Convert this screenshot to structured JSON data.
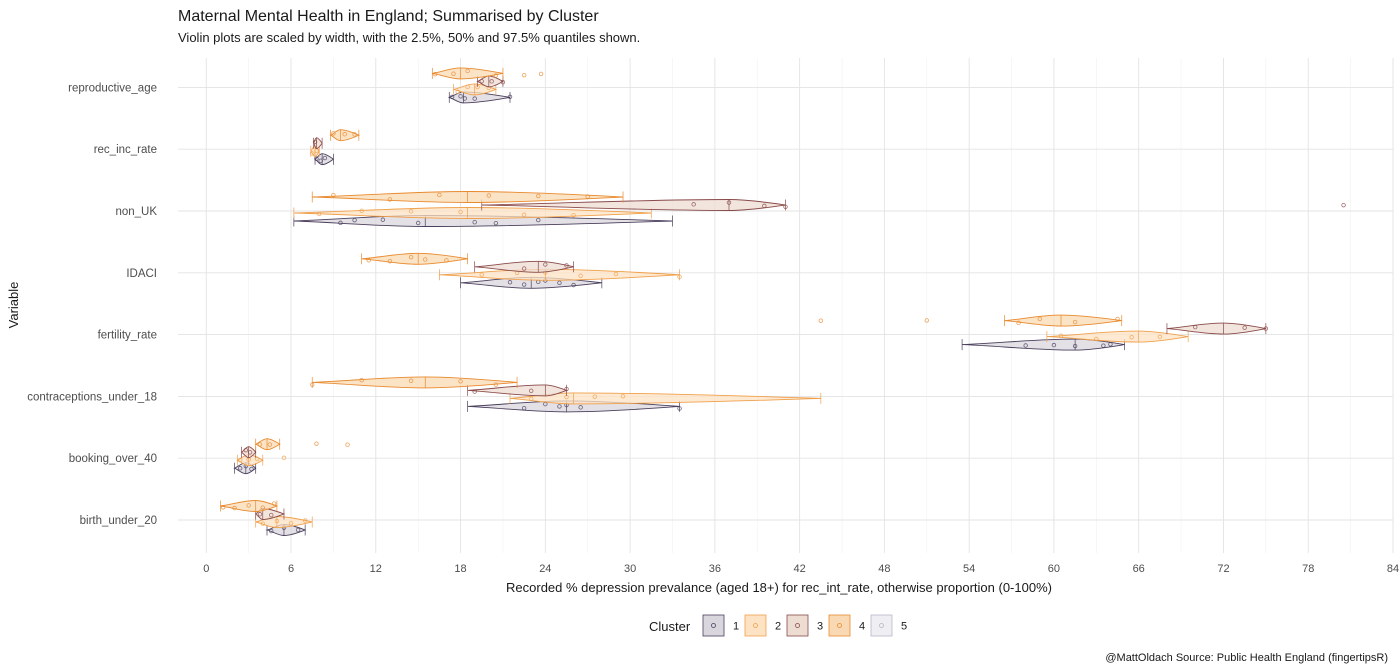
{
  "chart_data": {
    "type": "violin",
    "title": "Maternal Mental Health in England; Summarised by Cluster",
    "subtitle": "Violin plots are scaled by width, with the 2.5%, 50% and 97.5% quantiles shown.",
    "xlabel": "Recorded % depression prevalance (aged 18+) for rec_int_rate, otherwise proportion (0-100%)",
    "ylabel": "Variable",
    "caption": "@MattOldach Source: Public Health England (fingertipsR)",
    "xlim": [
      -2,
      84
    ],
    "x_ticks": [
      0,
      6,
      12,
      18,
      24,
      30,
      36,
      42,
      48,
      54,
      60,
      66,
      72,
      78,
      84
    ],
    "x_tick_labels": [
      "0",
      "6",
      "12",
      "18",
      "24",
      "30",
      "36",
      "42",
      "48",
      "54",
      "60",
      "66",
      "72",
      "78",
      "84"
    ],
    "grid": true,
    "categories": [
      "birth_under_20",
      "booking_over_40",
      "contraceptions_under_18",
      "fertility_rate",
      "IDACI",
      "non_UK",
      "rec_inc_rate",
      "reproductive_age"
    ],
    "legend": {
      "title": "Cluster",
      "position": "bottom",
      "items": [
        {
          "label": "1",
          "color": "#4a3f5c",
          "fill": "#d9d6de"
        },
        {
          "label": "2",
          "color": "#f0a04b",
          "fill": "#fde3c4"
        },
        {
          "label": "3",
          "color": "#8a4a4a",
          "fill": "#ecdcd2"
        },
        {
          "label": "4",
          "color": "#e88a2e",
          "fill": "#f9d9b3"
        },
        {
          "label": "5",
          "color": "#b8b8c8",
          "fill": "#eeeef3"
        }
      ]
    },
    "series": [
      {
        "name": "1",
        "violins": [
          {
            "category": "reproductive_age",
            "q": [
              17.2,
              18.2,
              21.5
            ],
            "points": [
              17.4,
              18.0,
              18.3,
              19.0,
              21.5
            ]
          },
          {
            "category": "rec_inc_rate",
            "q": [
              7.7,
              8.2,
              9.0
            ],
            "points": [
              7.8,
              8.1,
              8.4
            ]
          },
          {
            "category": "non_UK",
            "q": [
              6.2,
              15.5,
              33.0
            ],
            "points": [
              9.5,
              10.5,
              12.5,
              15.0,
              19.0,
              20.5,
              23.5
            ]
          },
          {
            "category": "IDACI",
            "q": [
              18.0,
              23.0,
              28.0
            ],
            "points": [
              21.5,
              22.5,
              23.5,
              24.0,
              25.0,
              26.0
            ]
          },
          {
            "category": "fertility_rate",
            "q": [
              53.5,
              61.5,
              65.0
            ],
            "points": [
              58.0,
              60.0,
              61.5,
              63.5,
              64.0
            ]
          },
          {
            "category": "contraceptions_under_18",
            "q": [
              18.5,
              25.5,
              33.5
            ],
            "points": [
              22.5,
              24.0,
              25.0,
              25.5,
              26.5,
              33.5
            ]
          },
          {
            "category": "booking_over_40",
            "q": [
              2.0,
              2.8,
              3.5
            ],
            "points": [
              2.4,
              2.8,
              3.2
            ]
          },
          {
            "category": "birth_under_20",
            "q": [
              4.3,
              5.5,
              7.0
            ],
            "points": [
              4.6,
              5.5,
              6.5
            ]
          }
        ]
      },
      {
        "name": "2",
        "violins": [
          {
            "category": "reproductive_age",
            "q": [
              17.5,
              19.0,
              20.5
            ],
            "points": [
              17.8,
              18.5,
              19.2,
              20.0
            ]
          },
          {
            "category": "rec_inc_rate",
            "q": [
              7.4,
              7.7,
              8.0
            ],
            "points": [
              7.5,
              7.8
            ]
          },
          {
            "category": "non_UK",
            "q": [
              6.2,
              18.5,
              31.5
            ],
            "points": [
              8.0,
              11.0,
              14.5,
              18.0,
              22.5,
              26.0
            ]
          },
          {
            "category": "IDACI",
            "q": [
              16.5,
              24.0,
              33.5
            ],
            "points": [
              19.5,
              22.0,
              24.0,
              26.5,
              29.0,
              33.5
            ]
          },
          {
            "category": "fertility_rate",
            "q": [
              59.5,
              66.0,
              69.5
            ],
            "points": [
              60.5,
              63.0,
              65.5,
              67.5
            ]
          },
          {
            "category": "contraceptions_under_18",
            "q": [
              21.5,
              26.0,
              43.5
            ],
            "points": [
              23.0,
              25.5,
              27.5,
              29.5
            ]
          },
          {
            "category": "booking_over_40",
            "q": [
              2.2,
              3.0,
              4.0
            ],
            "points": [
              2.4,
              3.0,
              3.6,
              5.5
            ]
          },
          {
            "category": "birth_under_20",
            "q": [
              3.5,
              5.0,
              7.5
            ],
            "points": [
              4.0,
              5.0,
              6.0,
              7.0
            ]
          }
        ]
      },
      {
        "name": "3",
        "violins": [
          {
            "category": "reproductive_age",
            "q": [
              19.2,
              20.0,
              21.0
            ],
            "points": [
              19.5,
              20.2,
              21.0
            ]
          },
          {
            "category": "rec_inc_rate",
            "q": [
              7.6,
              7.8,
              8.2
            ],
            "points": [
              7.7
            ]
          },
          {
            "category": "non_UK",
            "q": [
              19.5,
              37.0,
              41.0
            ],
            "points": [
              34.5,
              37.0,
              39.5,
              41.0,
              80.5
            ]
          },
          {
            "category": "IDACI",
            "q": [
              19.0,
              23.5,
              26.0
            ],
            "points": [
              22.5,
              24.0,
              25.5
            ]
          },
          {
            "category": "fertility_rate",
            "q": [
              68.0,
              72.0,
              75.0
            ],
            "points": [
              70.0,
              73.5,
              75.0
            ]
          },
          {
            "category": "contraceptions_under_18",
            "q": [
              18.5,
              24.0,
              25.5
            ],
            "points": [
              19.0,
              23.0,
              25.5
            ]
          },
          {
            "category": "booking_over_40",
            "q": [
              2.5,
              3.0,
              3.5
            ],
            "points": [
              2.8,
              3.1
            ]
          },
          {
            "category": "birth_under_20",
            "q": [
              3.5,
              4.0,
              5.5
            ],
            "points": [
              3.8,
              4.6
            ]
          }
        ]
      },
      {
        "name": "4",
        "violins": [
          {
            "category": "reproductive_age",
            "q": [
              16.0,
              18.0,
              21.0
            ],
            "points": [
              16.2,
              17.5,
              18.5,
              20.5,
              22.5,
              23.7
            ]
          },
          {
            "category": "rec_inc_rate",
            "q": [
              8.8,
              9.5,
              10.8
            ],
            "points": [
              9.0,
              9.8,
              10.5
            ]
          },
          {
            "category": "non_UK",
            "q": [
              7.5,
              18.5,
              29.5
            ],
            "points": [
              9.0,
              13.0,
              16.5,
              20.0,
              23.5,
              27.0
            ]
          },
          {
            "category": "IDACI",
            "q": [
              11.0,
              15.0,
              18.5
            ],
            "points": [
              11.5,
              13.0,
              14.5,
              15.5,
              17.0
            ]
          },
          {
            "category": "fertility_rate",
            "q": [
              56.5,
              60.5,
              64.8
            ],
            "points": [
              43.5,
              51.0,
              57.5,
              59.0,
              61.5,
              64.5
            ]
          },
          {
            "category": "contraceptions_under_18",
            "q": [
              7.5,
              15.5,
              22.0
            ],
            "points": [
              7.5,
              11.0,
              14.5,
              18.0,
              20.5
            ]
          },
          {
            "category": "booking_over_40",
            "q": [
              3.5,
              4.3,
              5.2
            ],
            "points": [
              3.8,
              4.5,
              7.8,
              10.0
            ]
          },
          {
            "category": "birth_under_20",
            "q": [
              1.0,
              3.5,
              5.0
            ],
            "points": [
              1.2,
              2.0,
              3.0,
              4.0,
              4.8
            ]
          }
        ]
      },
      {
        "name": "5",
        "violins": []
      }
    ]
  }
}
